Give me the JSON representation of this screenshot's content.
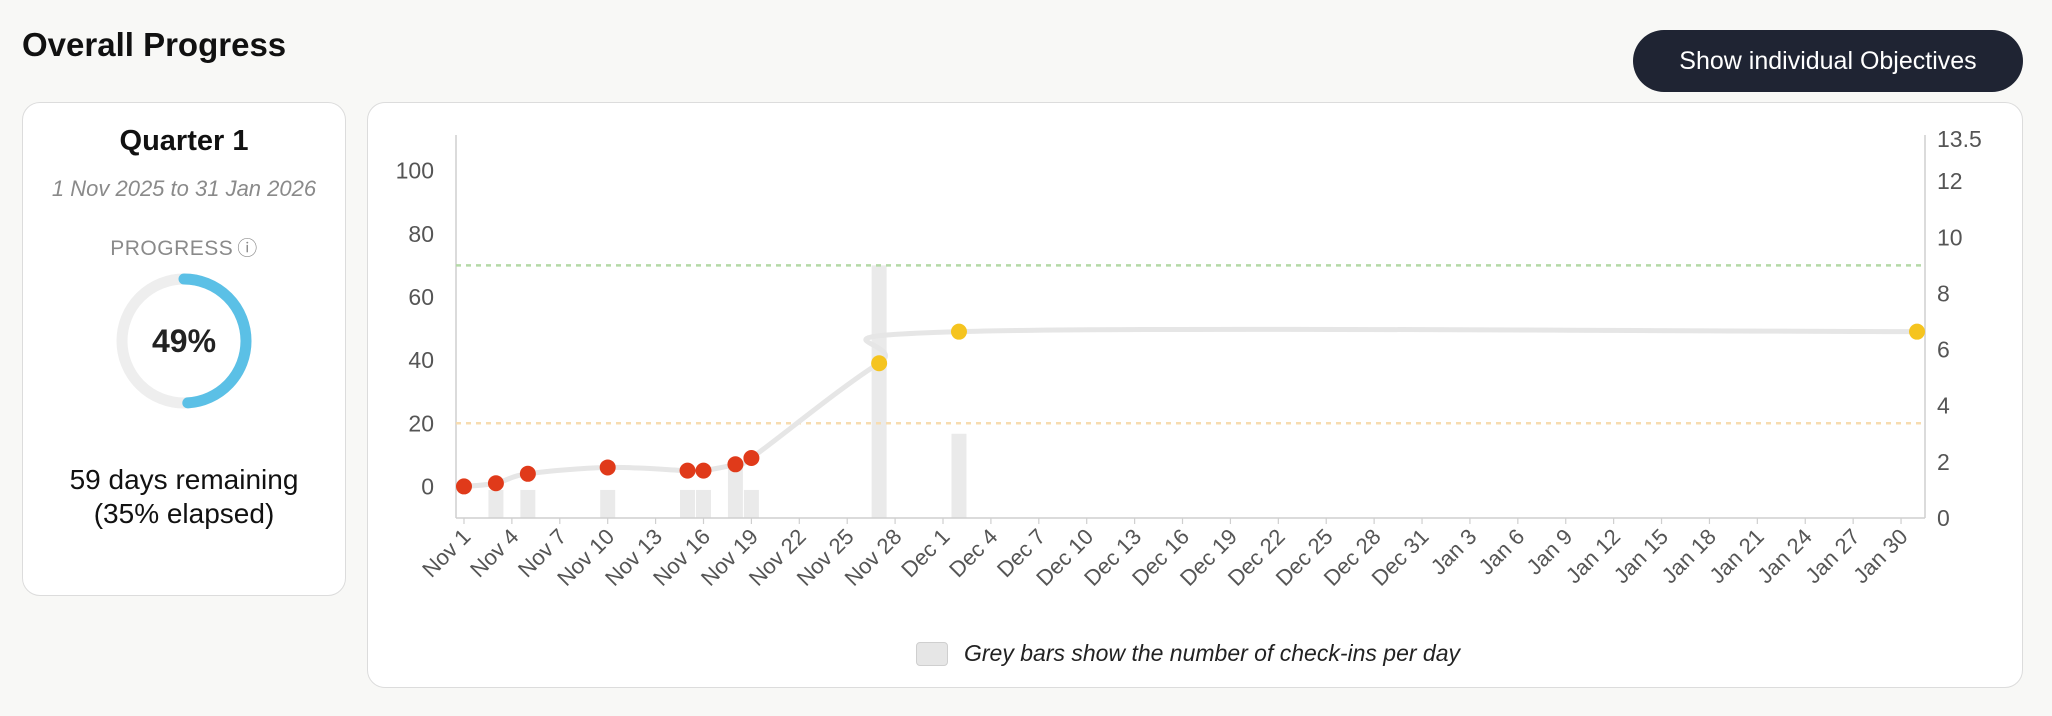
{
  "header": {
    "title": "Overall Progress",
    "toggle_button_label": "Show individual Objectives"
  },
  "quarter": {
    "title": "Quarter 1",
    "date_range": "1 Nov 2025 to 31 Jan 2026",
    "progress_label": "PROGRESS",
    "info_icon": "ⓘ",
    "progress_percent": 49,
    "progress_text": "49%",
    "remaining_line1": "59 days remaining",
    "remaining_line2": "(35% elapsed)",
    "ring_color": "#5bc0e6",
    "ring_track_color": "#eeeeee"
  },
  "chart_data": {
    "type": "line",
    "start_date": "2025-11-01",
    "x_tick_labels": [
      "Nov 1",
      "Nov 4",
      "Nov 7",
      "Nov 10",
      "Nov 13",
      "Nov 16",
      "Nov 19",
      "Nov 22",
      "Nov 25",
      "Nov 28",
      "Dec 1",
      "Dec 4",
      "Dec 7",
      "Dec 10",
      "Dec 13",
      "Dec 16",
      "Dec 19",
      "Dec 22",
      "Dec 25",
      "Dec 28",
      "Dec 31",
      "Jan 3",
      "Jan 6",
      "Jan 9",
      "Jan 12",
      "Jan 15",
      "Jan 18",
      "Jan 21",
      "Jan 24",
      "Jan 27",
      "Jan 30"
    ],
    "y_left_ticks": [
      0,
      20,
      40,
      60,
      80,
      100
    ],
    "y_left_range": [
      -10,
      110
    ],
    "y_right_ticks": [
      0,
      2,
      4,
      6,
      8,
      10,
      12,
      13.5
    ],
    "y_right_range": [
      0,
      13.5
    ],
    "progress_line": {
      "color": "#e6e6e6",
      "points": [
        {
          "date": "2025-11-01",
          "value": 0
        },
        {
          "date": "2025-11-03",
          "value": 1
        },
        {
          "date": "2025-11-05",
          "value": 4
        },
        {
          "date": "2025-11-10",
          "value": 6
        },
        {
          "date": "2025-11-15",
          "value": 5
        },
        {
          "date": "2025-11-16",
          "value": 5
        },
        {
          "date": "2025-11-18",
          "value": 7
        },
        {
          "date": "2025-11-19",
          "value": 9
        },
        {
          "date": "2025-11-27",
          "value": 39
        },
        {
          "date": "2025-12-02",
          "value": 49
        },
        {
          "date": "2026-01-31",
          "value": 49
        }
      ]
    },
    "markers": [
      {
        "date": "2025-11-01",
        "value": 0,
        "status": "red"
      },
      {
        "date": "2025-11-03",
        "value": 1,
        "status": "red"
      },
      {
        "date": "2025-11-05",
        "value": 4,
        "status": "red"
      },
      {
        "date": "2025-11-10",
        "value": 6,
        "status": "red"
      },
      {
        "date": "2025-11-15",
        "value": 5,
        "status": "red"
      },
      {
        "date": "2025-11-16",
        "value": 5,
        "status": "red"
      },
      {
        "date": "2025-11-18",
        "value": 7,
        "status": "red"
      },
      {
        "date": "2025-11-19",
        "value": 9,
        "status": "red"
      },
      {
        "date": "2025-11-27",
        "value": 39,
        "status": "yellow"
      },
      {
        "date": "2025-12-02",
        "value": 49,
        "status": "yellow"
      },
      {
        "date": "2026-01-31",
        "value": 49,
        "status": "yellow"
      }
    ],
    "checkins": [
      {
        "date": "2025-11-03",
        "count": 1
      },
      {
        "date": "2025-11-05",
        "count": 1
      },
      {
        "date": "2025-11-10",
        "count": 1
      },
      {
        "date": "2025-11-15",
        "count": 1
      },
      {
        "date": "2025-11-16",
        "count": 1
      },
      {
        "date": "2025-11-18",
        "count": 2
      },
      {
        "date": "2025-11-19",
        "count": 1
      },
      {
        "date": "2025-11-27",
        "count": 9
      },
      {
        "date": "2025-12-02",
        "count": 3
      }
    ],
    "thresholds": [
      {
        "value": 70,
        "color": "#b5d9a8"
      },
      {
        "value": 20,
        "color": "#f7dcb0"
      }
    ],
    "colors": {
      "red": "#e03a1a",
      "yellow": "#f5c41f",
      "bar": "#eaeaea",
      "axis": "#cfcfcf",
      "tick_text": "#555555"
    },
    "legend_text": "Grey bars show the number of check-ins per day"
  }
}
